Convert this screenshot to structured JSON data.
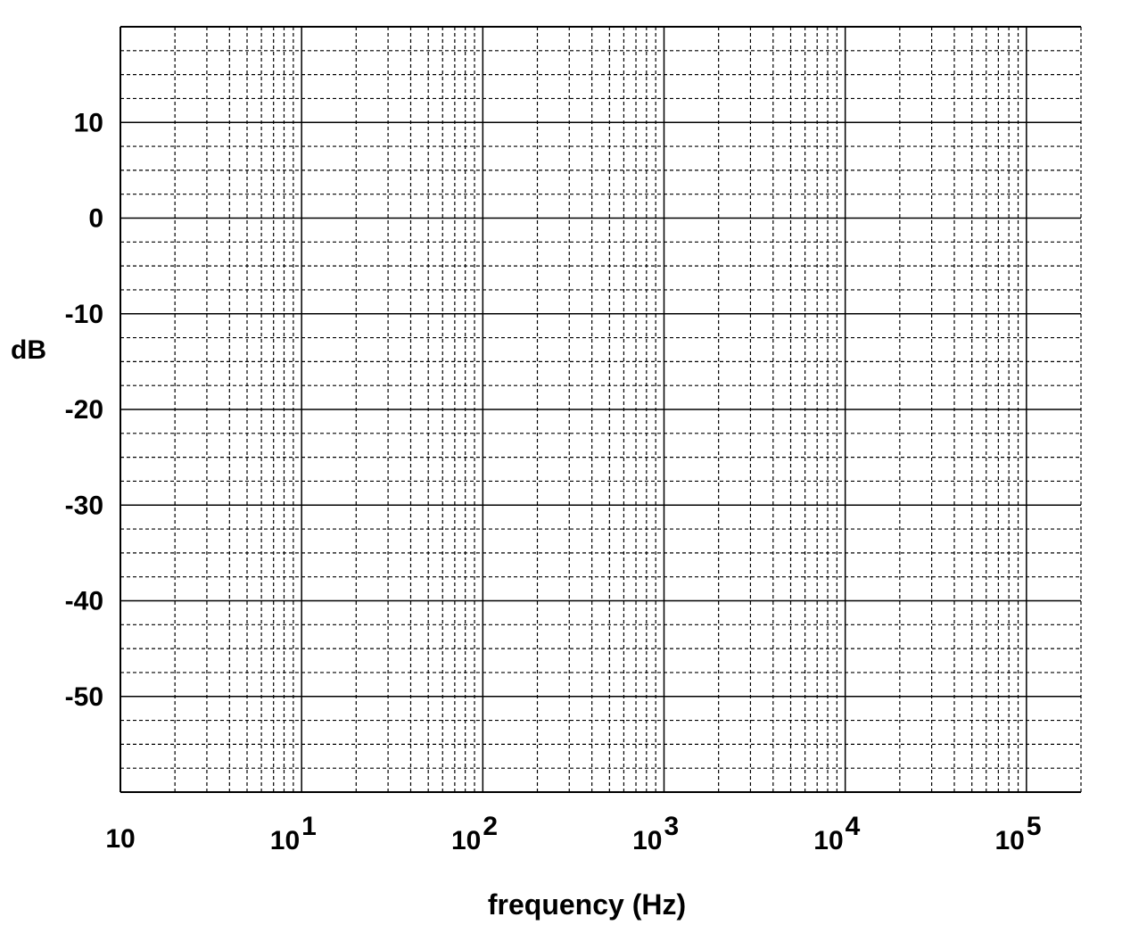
{
  "chart_data": {
    "type": "line",
    "title": "",
    "xlabel": "frequency (Hz)",
    "ylabel": "dB",
    "x_scale": "log",
    "xlim": [
      1,
      200000
    ],
    "ylim": [
      -60,
      20
    ],
    "x_ticks": [
      {
        "value": 1,
        "mantissa": "10",
        "exponent": ""
      },
      {
        "value": 10,
        "mantissa": "10",
        "exponent": "1"
      },
      {
        "value": 100,
        "mantissa": "10",
        "exponent": "2"
      },
      {
        "value": 1000,
        "mantissa": "10",
        "exponent": "3"
      },
      {
        "value": 10000,
        "mantissa": "10",
        "exponent": "4"
      },
      {
        "value": 100000,
        "mantissa": "10",
        "exponent": "5"
      }
    ],
    "y_ticks": [
      {
        "value": 10,
        "label": "10"
      },
      {
        "value": 0,
        "label": "0"
      },
      {
        "value": -10,
        "label": "-10"
      },
      {
        "value": -20,
        "label": "-20"
      },
      {
        "value": -30,
        "label": "-30"
      },
      {
        "value": -40,
        "label": "-40"
      },
      {
        "value": -50,
        "label": "-50"
      }
    ],
    "grid": {
      "major": "solid",
      "minor": "dashed",
      "y_minor_step": 2.5
    },
    "series": []
  }
}
